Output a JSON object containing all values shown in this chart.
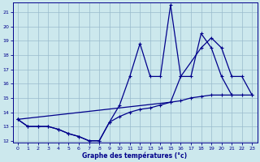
{
  "xlabel": "Graphe des températures (°c)",
  "x": [
    0,
    1,
    2,
    3,
    4,
    5,
    6,
    7,
    8,
    9,
    10,
    11,
    12,
    13,
    14,
    15,
    16,
    17,
    18,
    19,
    20,
    21,
    22,
    23
  ],
  "line1_y": [
    13.5,
    13.0,
    13.0,
    13.0,
    12.8,
    12.5,
    12.3,
    12.0,
    12.0,
    13.3,
    13.7,
    14.0,
    14.2,
    14.3,
    14.5,
    14.7,
    14.8,
    15.0,
    15.1,
    15.2,
    15.2,
    15.2,
    15.2,
    15.2
  ],
  "line2_x": [
    0,
    1,
    2,
    3,
    4,
    5,
    6,
    7,
    8,
    9,
    10,
    11,
    12,
    13,
    14,
    15,
    16,
    17,
    18,
    19,
    20,
    21,
    22,
    23
  ],
  "line2_y": [
    13.5,
    13.0,
    13.0,
    13.0,
    12.8,
    12.5,
    12.3,
    12.0,
    12.0,
    13.3,
    14.5,
    16.5,
    18.8,
    16.5,
    16.5,
    21.5,
    16.5,
    16.5,
    19.5,
    18.5,
    16.5,
    15.2,
    null,
    null
  ],
  "line3_x": [
    0,
    15,
    16,
    18,
    19,
    20,
    21,
    22,
    23
  ],
  "line3_y": [
    13.5,
    14.7,
    16.5,
    18.5,
    19.2,
    18.5,
    16.5,
    16.5,
    15.2
  ],
  "ylim": [
    12,
    21.5
  ],
  "xlim": [
    -0.5,
    23.5
  ],
  "yticks": [
    12,
    13,
    14,
    15,
    16,
    17,
    18,
    19,
    20,
    21
  ],
  "xticks": [
    0,
    1,
    2,
    3,
    4,
    5,
    6,
    7,
    8,
    9,
    10,
    11,
    12,
    13,
    14,
    15,
    16,
    17,
    18,
    19,
    20,
    21,
    22,
    23
  ],
  "bg_color": "#cce8ed",
  "line_color": "#00008b",
  "grid_color": "#99bbcc"
}
